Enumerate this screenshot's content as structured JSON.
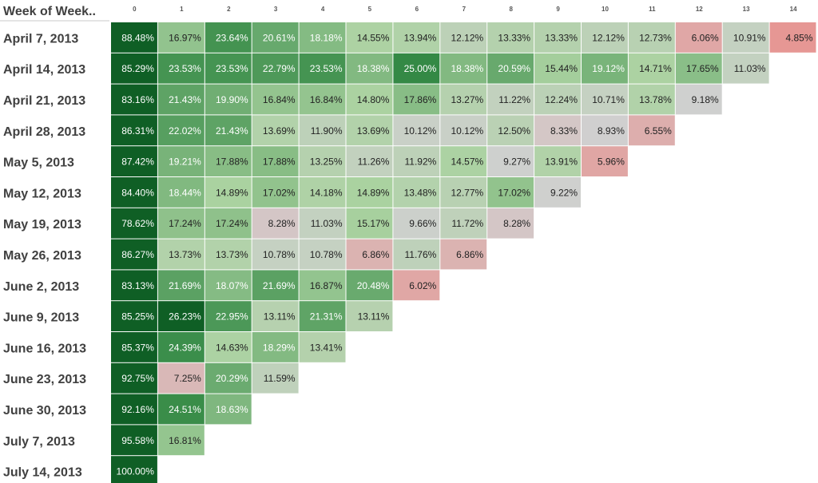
{
  "header": {
    "title": "Week of Week.."
  },
  "chart_data": {
    "type": "heatmap",
    "row_header": "Week of Week..",
    "columns": [
      "0",
      "1",
      "2",
      "3",
      "4",
      "5",
      "6",
      "7",
      "8",
      "9",
      "10",
      "11",
      "12",
      "13",
      "14"
    ],
    "rows": [
      {
        "label": "April 7, 2013",
        "values": [
          88.48,
          16.97,
          23.64,
          20.61,
          18.18,
          14.55,
          13.94,
          12.12,
          13.33,
          13.33,
          12.12,
          12.73,
          6.06,
          10.91,
          4.85
        ]
      },
      {
        "label": "April 14, 2013",
        "values": [
          85.29,
          23.53,
          23.53,
          22.79,
          23.53,
          18.38,
          25.0,
          18.38,
          20.59,
          15.44,
          19.12,
          14.71,
          17.65,
          11.03
        ]
      },
      {
        "label": "April 21, 2013",
        "values": [
          83.16,
          21.43,
          19.9,
          16.84,
          16.84,
          14.8,
          17.86,
          13.27,
          11.22,
          12.24,
          10.71,
          13.78,
          9.18
        ]
      },
      {
        "label": "April 28, 2013",
        "values": [
          86.31,
          22.02,
          21.43,
          13.69,
          11.9,
          13.69,
          10.12,
          10.12,
          12.5,
          8.33,
          8.93,
          6.55
        ]
      },
      {
        "label": "May 5, 2013",
        "values": [
          87.42,
          19.21,
          17.88,
          17.88,
          13.25,
          11.26,
          11.92,
          14.57,
          9.27,
          13.91,
          5.96
        ]
      },
      {
        "label": "May 12, 2013",
        "values": [
          84.4,
          18.44,
          14.89,
          17.02,
          14.18,
          14.89,
          13.48,
          12.77,
          17.02,
          9.22
        ]
      },
      {
        "label": "May 19, 2013",
        "values": [
          78.62,
          17.24,
          17.24,
          8.28,
          11.03,
          15.17,
          9.66,
          11.72,
          8.28
        ]
      },
      {
        "label": "May 26, 2013",
        "values": [
          86.27,
          13.73,
          13.73,
          10.78,
          10.78,
          6.86,
          11.76,
          6.86
        ]
      },
      {
        "label": "June 2, 2013",
        "values": [
          83.13,
          21.69,
          18.07,
          21.69,
          16.87,
          20.48,
          6.02
        ]
      },
      {
        "label": "June 9, 2013",
        "values": [
          85.25,
          26.23,
          22.95,
          13.11,
          21.31,
          13.11
        ]
      },
      {
        "label": "June 16, 2013",
        "values": [
          85.37,
          24.39,
          14.63,
          18.29,
          13.41
        ]
      },
      {
        "label": "June 23, 2013",
        "values": [
          92.75,
          7.25,
          20.29,
          11.59
        ]
      },
      {
        "label": "June 30, 2013",
        "values": [
          92.16,
          24.51,
          18.63
        ]
      },
      {
        "label": "July 7, 2013",
        "values": [
          95.58,
          16.81
        ]
      },
      {
        "label": "July 14, 2013",
        "values": [
          100.0
        ]
      }
    ],
    "value_format": "percent_2dp",
    "color_scale": {
      "low": "#e8928f",
      "mid": "#d0d0d0",
      "high": "#0f5f25"
    }
  }
}
